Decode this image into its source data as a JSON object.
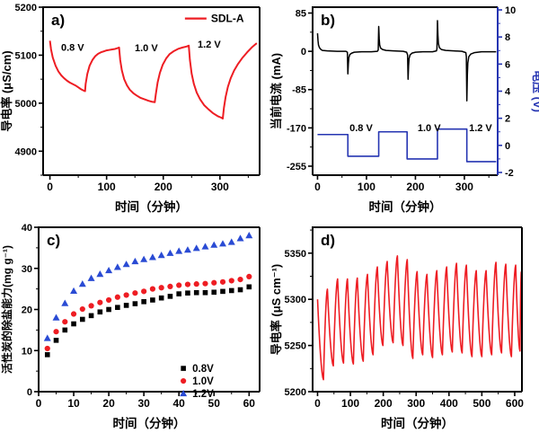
{
  "figure_title": "",
  "colors": {
    "red": "#ee1d23",
    "blue": "#2635b2",
    "scatter_blue": "#2a4bd4",
    "black": "#000000"
  },
  "chart_data": [
    {
      "id": "a",
      "type": "line",
      "panel_label": "a)",
      "xlabel": "时间（分钟）",
      "ylabel": "导电率 (μS/cm)",
      "xlim": [
        -12,
        370
      ],
      "ylim": [
        4850,
        5200
      ],
      "xticks": [
        0,
        100,
        200,
        300
      ],
      "yticks": [
        4900,
        5000,
        5100,
        5200
      ],
      "xminor": 50,
      "yminor": 50,
      "grid": false,
      "legend": {
        "position": "top-right",
        "fx": 0.655,
        "fy": 0.03,
        "entries": [
          {
            "label": "SDL-A",
            "color": "#ee1d23",
            "marker": "line"
          }
        ]
      },
      "annotations": [
        {
          "text": "0.8 V",
          "x": 40,
          "y": 5117
        },
        {
          "text": "1.0 V",
          "x": 170,
          "y": 5116
        },
        {
          "text": "1.2 V",
          "x": 281,
          "y": 5123
        }
      ],
      "series": [
        {
          "name": "SDL-A",
          "color": "#ee1d23",
          "width": 2,
          "points": [
            [
              0,
              5130
            ],
            [
              2,
              5112
            ],
            [
              5,
              5095
            ],
            [
              10,
              5078
            ],
            [
              15,
              5066
            ],
            [
              20,
              5058
            ],
            [
              25,
              5052
            ],
            [
              30,
              5047
            ],
            [
              35,
              5043
            ],
            [
              40,
              5040
            ],
            [
              45,
              5037
            ],
            [
              50,
              5033
            ],
            [
              55,
              5029
            ],
            [
              60,
              5026
            ],
            [
              62,
              5025
            ],
            [
              63,
              5040
            ],
            [
              66,
              5061
            ],
            [
              70,
              5078
            ],
            [
              75,
              5090
            ],
            [
              80,
              5098
            ],
            [
              85,
              5103
            ],
            [
              90,
              5106
            ],
            [
              95,
              5108
            ],
            [
              100,
              5110
            ],
            [
              105,
              5111
            ],
            [
              110,
              5112
            ],
            [
              115,
              5113
            ],
            [
              120,
              5115
            ],
            [
              122,
              5116
            ],
            [
              124,
              5090
            ],
            [
              127,
              5068
            ],
            [
              131,
              5050
            ],
            [
              136,
              5037
            ],
            [
              141,
              5028
            ],
            [
              147,
              5021
            ],
            [
              153,
              5016
            ],
            [
              160,
              5011
            ],
            [
              167,
              5008
            ],
            [
              174,
              5005
            ],
            [
              180,
              5003
            ],
            [
              185,
              5002
            ],
            [
              187,
              5020
            ],
            [
              190,
              5043
            ],
            [
              194,
              5063
            ],
            [
              199,
              5080
            ],
            [
              205,
              5093
            ],
            [
              211,
              5102
            ],
            [
              218,
              5108
            ],
            [
              226,
              5113
            ],
            [
              234,
              5116
            ],
            [
              241,
              5118
            ],
            [
              245,
              5120
            ],
            [
              247,
              5090
            ],
            [
              250,
              5062
            ],
            [
              254,
              5040
            ],
            [
              259,
              5022
            ],
            [
              265,
              5008
            ],
            [
              272,
              4996
            ],
            [
              280,
              4987
            ],
            [
              288,
              4979
            ],
            [
              296,
              4973
            ],
            [
              302,
              4970
            ],
            [
              305,
              4968
            ],
            [
              307,
              4990
            ],
            [
              310,
              5013
            ],
            [
              314,
              5034
            ],
            [
              319,
              5052
            ],
            [
              325,
              5068
            ],
            [
              332,
              5082
            ],
            [
              340,
              5095
            ],
            [
              348,
              5106
            ],
            [
              356,
              5116
            ],
            [
              362,
              5122
            ],
            [
              365,
              5125
            ]
          ]
        }
      ]
    },
    {
      "id": "b",
      "type": "line",
      "panel_label": "b)",
      "xlabel": "时间（分钟）",
      "ylabel": "当前电流 (mA)",
      "y2label": "电压 (V)",
      "y2color": "#2635b2",
      "xlim": [
        -10,
        368
      ],
      "ylim": [
        -275,
        98
      ],
      "y2lim": [
        -2.2,
        10.2
      ],
      "xticks": [
        0,
        100,
        200,
        300
      ],
      "yticks": [
        85,
        0,
        -85,
        -170,
        -255
      ],
      "y2ticks": [
        10,
        8,
        6,
        4,
        2,
        0,
        -2
      ],
      "xminor": 50,
      "yminor": 42.5,
      "y2minor": 1,
      "grid": false,
      "annotations": [
        {
          "text": "0.8 V",
          "x": 89,
          "y": 1.3,
          "axis": "y2"
        },
        {
          "text": "1.0 V",
          "x": 228,
          "y": 1.3,
          "axis": "y2"
        },
        {
          "text": "1.2 V",
          "x": 333,
          "y": 1.3,
          "axis": "y2"
        }
      ],
      "series": [
        {
          "name": "current",
          "color": "#000000",
          "width": 1.5,
          "points": [
            [
              0,
              40
            ],
            [
              1,
              24
            ],
            [
              2,
              14
            ],
            [
              4,
              8
            ],
            [
              7,
              4
            ],
            [
              10,
              2
            ],
            [
              20,
              1
            ],
            [
              40,
              0
            ],
            [
              58,
              0
            ],
            [
              61,
              -2
            ],
            [
              62,
              -50
            ],
            [
              63,
              -28
            ],
            [
              64,
              -14
            ],
            [
              66,
              -7
            ],
            [
              70,
              -4
            ],
            [
              75,
              -2
            ],
            [
              90,
              -1
            ],
            [
              110,
              -1
            ],
            [
              122,
              0
            ],
            [
              124,
              3
            ],
            [
              125,
              55
            ],
            [
              126,
              28
            ],
            [
              127,
              14
            ],
            [
              129,
              7
            ],
            [
              133,
              4
            ],
            [
              140,
              2
            ],
            [
              155,
              1
            ],
            [
              175,
              0
            ],
            [
              182,
              -2
            ],
            [
              184,
              -8
            ],
            [
              185,
              -62
            ],
            [
              186,
              -32
            ],
            [
              187,
              -16
            ],
            [
              189,
              -8
            ],
            [
              193,
              -4
            ],
            [
              200,
              -2
            ],
            [
              215,
              -1
            ],
            [
              235,
              -1
            ],
            [
              243,
              1
            ],
            [
              244,
              6
            ],
            [
              245,
              68
            ],
            [
              246,
              36
            ],
            [
              247,
              17
            ],
            [
              249,
              8
            ],
            [
              253,
              4
            ],
            [
              262,
              2
            ],
            [
              278,
              1
            ],
            [
              295,
              0
            ],
            [
              303,
              -3
            ],
            [
              304,
              -12
            ],
            [
              305,
              -110
            ],
            [
              306,
              -55
            ],
            [
              307,
              -26
            ],
            [
              309,
              -12
            ],
            [
              313,
              -6
            ],
            [
              320,
              -3
            ],
            [
              335,
              -1
            ],
            [
              350,
              -1
            ],
            [
              365,
              -1
            ]
          ]
        },
        {
          "name": "voltage",
          "color": "#2635b2",
          "width": 1.6,
          "axis": "y2",
          "points": [
            [
              0,
              0.8
            ],
            [
              62,
              0.8
            ],
            [
              62,
              -0.8
            ],
            [
              125,
              -0.8
            ],
            [
              125,
              1.0
            ],
            [
              183,
              1.0
            ],
            [
              183,
              -1.0
            ],
            [
              245,
              -1.0
            ],
            [
              245,
              1.2
            ],
            [
              305,
              1.2
            ],
            [
              305,
              -1.2
            ],
            [
              365,
              -1.2
            ]
          ]
        }
      ]
    },
    {
      "id": "c",
      "type": "scatter",
      "panel_label": "c)",
      "xlabel": "时间（分钟）",
      "ylabel": "活性炭的除盐能力(mg g⁻¹)",
      "xlim": [
        0,
        63
      ],
      "ylim": [
        0,
        40
      ],
      "xticks": [
        0,
        10,
        20,
        30,
        40,
        50,
        60
      ],
      "yticks": [
        0,
        10,
        20,
        30,
        40
      ],
      "xminor": 5,
      "yminor": 5,
      "grid": false,
      "legend": {
        "position": "bottom-right",
        "fx": 0.655,
        "fy": 0.82,
        "entries": [
          {
            "label": "0.8V",
            "color": "#000000",
            "marker": "square"
          },
          {
            "label": "1.0V",
            "color": "#ee1d23",
            "marker": "circle"
          },
          {
            "label": "1.2V",
            "color": "#2a4bd4",
            "marker": "triangle"
          }
        ]
      },
      "x": [
        2.5,
        5,
        7.5,
        10,
        12.5,
        15,
        17.5,
        20,
        22.5,
        25,
        27.5,
        30,
        32.5,
        35,
        37.5,
        40,
        42.5,
        45,
        47.5,
        50,
        52.5,
        55,
        57.5,
        60
      ],
      "series": [
        {
          "name": "0.8V",
          "marker": "square",
          "color": "#000000",
          "values": [
            9.0,
            12.5,
            15.0,
            16.5,
            17.6,
            18.5,
            19.4,
            20.0,
            20.5,
            21.0,
            21.4,
            21.9,
            22.3,
            22.8,
            23.2,
            23.8,
            24.0,
            24.1,
            24.1,
            24.2,
            24.4,
            24.6,
            24.8,
            25.5
          ]
        },
        {
          "name": "1.0V",
          "marker": "circle",
          "color": "#ee1d23",
          "values": [
            10.5,
            14.6,
            17.0,
            18.9,
            20.1,
            20.9,
            21.7,
            22.3,
            23.0,
            23.5,
            24.0,
            24.4,
            25.0,
            25.3,
            25.6,
            25.9,
            26.1,
            26.2,
            26.3,
            26.5,
            26.7,
            27.0,
            27.3,
            28.0
          ]
        },
        {
          "name": "1.2V",
          "marker": "triangle",
          "color": "#2a4bd4",
          "values": [
            13.0,
            18.0,
            21.5,
            24.5,
            26.2,
            27.6,
            28.6,
            29.5,
            30.3,
            31.0,
            31.7,
            32.2,
            32.7,
            33.2,
            33.7,
            34.2,
            34.5,
            34.9,
            35.3,
            35.7,
            36.0,
            36.4,
            37.3,
            38.0
          ]
        }
      ]
    },
    {
      "id": "d",
      "type": "line",
      "panel_label": "d)",
      "xlabel": "时间（分钟）",
      "ylabel": "导电率 (μS cm⁻¹)",
      "xlim": [
        -15,
        622
      ],
      "ylim": [
        5200,
        5378
      ],
      "xticks": [
        0,
        100,
        200,
        300,
        400,
        500,
        600
      ],
      "yticks": [
        5200,
        5250,
        5300,
        5350
      ],
      "xminor": 50,
      "yminor": 25,
      "grid": false,
      "series": [
        {
          "name": "conductivity",
          "color": "#ee1d23",
          "width": 1.6,
          "generator": "sawtooth",
          "start": [
            0,
            5300
          ],
          "cycles": [
            [
              18,
              5213,
              30,
              5311
            ],
            [
              48,
              5228,
              61,
              5322
            ],
            [
              79,
              5231,
              91,
              5322
            ],
            [
              109,
              5230,
              121,
              5323
            ],
            [
              139,
              5233,
              152,
              5327
            ],
            [
              169,
              5240,
              182,
              5335
            ],
            [
              199,
              5250,
              212,
              5341
            ],
            [
              230,
              5253,
              243,
              5347
            ],
            [
              260,
              5250,
              273,
              5343
            ],
            [
              290,
              5236,
              303,
              5330
            ],
            [
              320,
              5240,
              333,
              5327
            ],
            [
              350,
              5237,
              363,
              5331
            ],
            [
              380,
              5240,
              393,
              5335
            ],
            [
              410,
              5243,
              423,
              5339
            ],
            [
              440,
              5242,
              453,
              5337
            ],
            [
              470,
              5238,
              483,
              5331
            ],
            [
              500,
              5238,
              513,
              5331
            ],
            [
              530,
              5240,
              543,
              5340
            ],
            [
              560,
              5242,
              573,
              5338
            ],
            [
              590,
              5238,
              603,
              5337
            ],
            [
              616,
              5244,
              620,
              5330
            ]
          ]
        }
      ]
    }
  ]
}
